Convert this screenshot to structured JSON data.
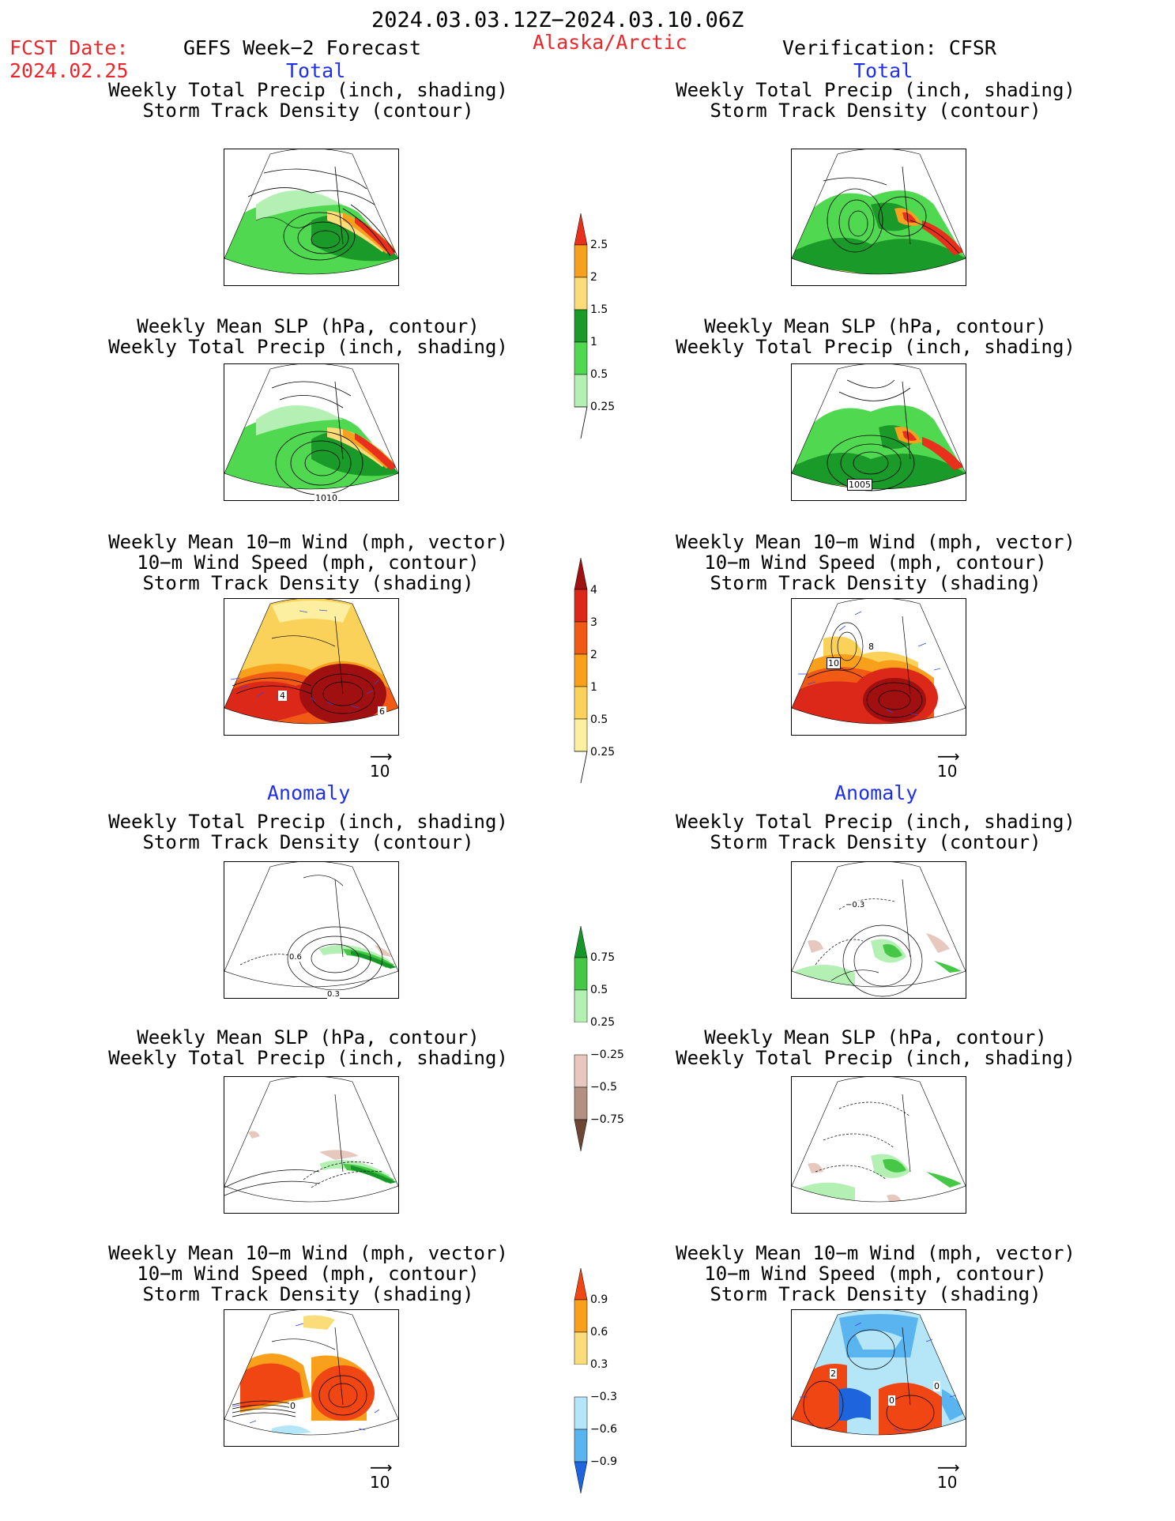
{
  "header": {
    "date_range": "2024.03.03.12Z−2024.03.10.06Z",
    "fcst_label": "FCST Date:",
    "fcst_date": "2024.02.25",
    "product": "GEFS Week−2 Forecast",
    "region": "Alaska/Arctic",
    "verification": "Verification: CFSR"
  },
  "sections": {
    "total": "Total",
    "anomaly": "Anomaly"
  },
  "titles": {
    "precip_track": [
      "Weekly Total Precip (inch, shading)",
      "Storm Track Density (contour)"
    ],
    "slp_precip": [
      "Weekly Mean SLP (hPa, contour)",
      "Weekly Total Precip (inch, shading)"
    ],
    "wind_track": [
      "Weekly Mean 10−m Wind (mph, vector)",
      "10−m Wind Speed (mph, contour)",
      "Storm Track Density (shading)"
    ]
  },
  "map_labels": {
    "slp_fcst": "1010",
    "slp_verif": "1005",
    "wind_fcst": "4",
    "wind_fcst2": "6",
    "wind_verif": "10",
    "wind_verif2": "8",
    "anom_track_fcst_a": "0.6",
    "anom_track_fcst_b": "0.3",
    "anom_track_verif": "−0.3",
    "anom_wind_fcst": "0",
    "anom_wind_verif_a": "2",
    "anom_wind_verif_b": "0",
    "anom_wind_verif_c": "0"
  },
  "reference_vector": "10",
  "colorbars": {
    "precip_total": {
      "labels": [
        "2.5",
        "2",
        "1.5",
        "1",
        "0.5",
        "0.25"
      ],
      "colors": [
        "#e8301c",
        "#f5a01e",
        "#fadc78",
        "#1a9a28",
        "#50d850",
        "#b4f0b4"
      ]
    },
    "track_total": {
      "labels": [
        "4",
        "3",
        "2",
        "1",
        "0.5",
        "0.25"
      ],
      "colors": [
        "#a01010",
        "#dc2818",
        "#f05a14",
        "#f8a01c",
        "#fad25a",
        "#fcf0a0"
      ]
    },
    "precip_anom": {
      "labels": [
        "0.75",
        "0.5",
        "0.25",
        "−0.25",
        "−0.5",
        "−0.75"
      ],
      "colors": [
        "#169628",
        "#46c846",
        "#b4f0b4",
        "#ffffff",
        "#e6c8be",
        "#b49082",
        "#6e4634"
      ]
    },
    "track_anom": {
      "labels": [
        "0.9",
        "0.6",
        "0.3",
        "−0.3",
        "−0.6",
        "−0.9"
      ],
      "colors": [
        "#f04614",
        "#f8a01c",
        "#fadc78",
        "#ffffff",
        "#b4e6f8",
        "#5ab4f0",
        "#1e64dc"
      ]
    }
  }
}
